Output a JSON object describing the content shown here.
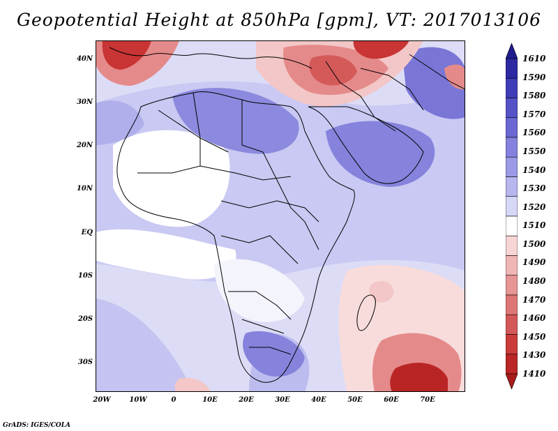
{
  "title": "Geopotential Height at 850hPa [gpm], VT: 2017013106",
  "credit": "GrADS: IGES/COLA",
  "map": {
    "lon_labels": [
      "20W",
      "10W",
      "0",
      "10E",
      "20E",
      "30E",
      "40E",
      "50E",
      "60E",
      "70E"
    ],
    "lat_labels": [
      "40N",
      "30N",
      "20N",
      "10N",
      "EQ",
      "10S",
      "20S",
      "30S"
    ]
  },
  "colorbar": {
    "labels": [
      "1610",
      "1590",
      "1580",
      "1570",
      "1560",
      "1550",
      "1540",
      "1530",
      "1520",
      "1510",
      "1500",
      "1490",
      "1480",
      "1470",
      "1460",
      "1450",
      "1430",
      "1410"
    ],
    "colors": [
      "#1f1b8c",
      "#2d29a3",
      "#3f3cb8",
      "#5552c8",
      "#6b68d4",
      "#8482de",
      "#9c9ae6",
      "#b7b6ee",
      "#d7d7f7",
      "#ffffff",
      "#f8d5d5",
      "#f0b5b5",
      "#e79595",
      "#df7676",
      "#d55858",
      "#cc3b3b",
      "#bb2626",
      "#a81b1b"
    ]
  },
  "palette": {
    "background": "#ffffff",
    "ocean": "#dcdcf6",
    "blue_mid": "#b7b6ee",
    "blue_deep": "#8f8ddf",
    "red_light": "#f3c7c7",
    "red_mid": "#e58a8a",
    "red_deep": "#c93434",
    "border": "#000000"
  }
}
